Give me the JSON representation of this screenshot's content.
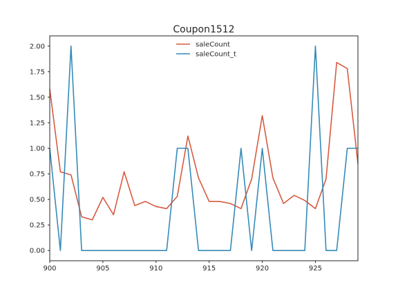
{
  "chart_data": {
    "type": "line",
    "title": "Coupon1512",
    "xlabel": "",
    "ylabel": "",
    "x": [
      900,
      901,
      902,
      903,
      904,
      905,
      906,
      907,
      908,
      909,
      910,
      911,
      912,
      913,
      914,
      915,
      916,
      917,
      918,
      919,
      920,
      921,
      922,
      923,
      924,
      925,
      926,
      927,
      928,
      929
    ],
    "xlim": [
      900,
      929
    ],
    "ylim": [
      -0.1,
      2.1
    ],
    "xticks": [
      "900",
      "905",
      "910",
      "915",
      "920",
      "925"
    ],
    "yticks": [
      "0.00",
      "0.25",
      "0.50",
      "0.75",
      "1.00",
      "1.25",
      "1.50",
      "1.75",
      "2.00"
    ],
    "grid": false,
    "legend_position": "top-center",
    "series": [
      {
        "name": "saleCount",
        "color": "#d65a3f",
        "values": [
          1.58,
          0.77,
          0.74,
          0.33,
          0.3,
          0.52,
          0.35,
          0.77,
          0.44,
          0.48,
          0.43,
          0.41,
          0.53,
          1.12,
          0.71,
          0.48,
          0.48,
          0.46,
          0.41,
          0.7,
          1.32,
          0.71,
          0.46,
          0.54,
          0.49,
          0.41,
          0.7,
          1.84,
          1.78,
          0.85
        ]
      },
      {
        "name": "saleCount_t",
        "color": "#348ab8",
        "values": [
          1,
          0,
          2,
          0,
          0,
          0,
          0,
          0,
          0,
          0,
          0,
          0,
          1,
          1,
          0,
          0,
          0,
          0,
          1,
          0,
          1,
          0,
          0,
          0,
          0,
          2,
          0,
          0,
          1,
          1
        ]
      }
    ]
  }
}
